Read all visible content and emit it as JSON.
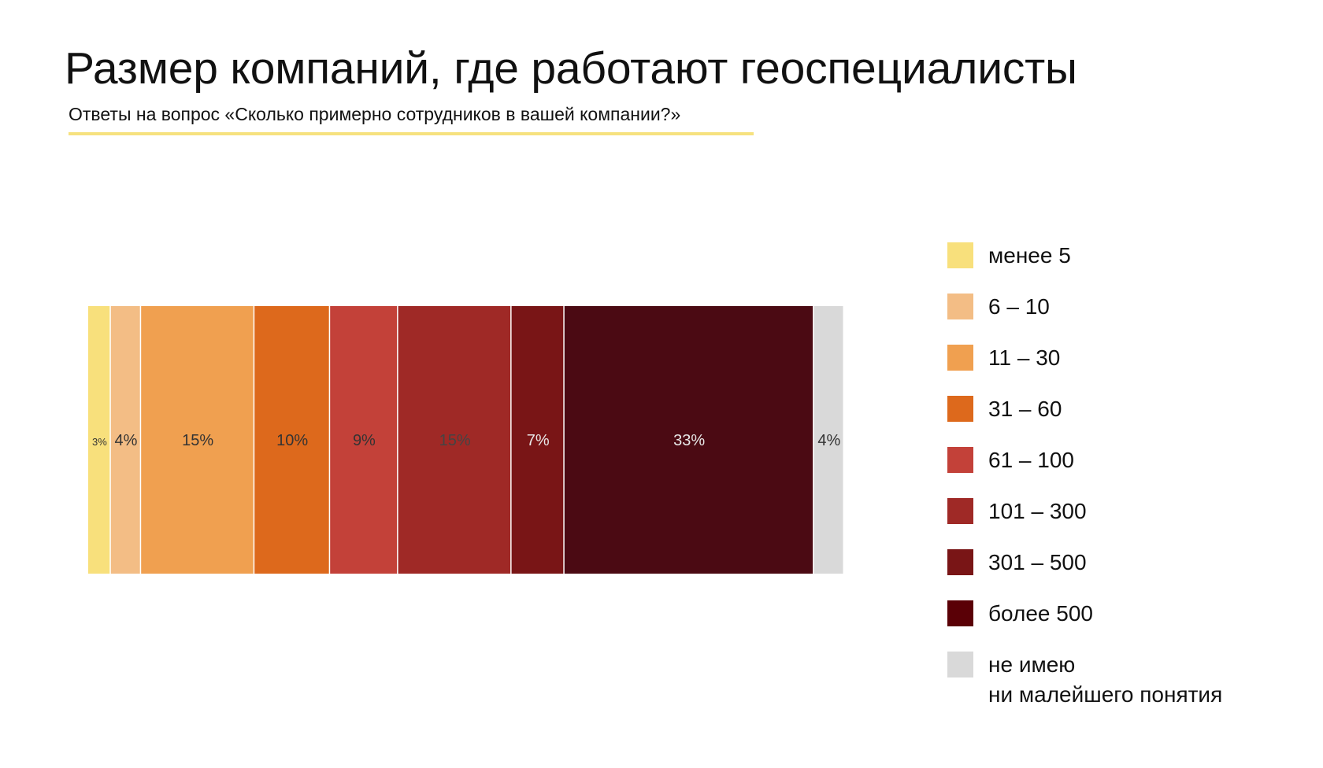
{
  "title": "Размер компаний, где работают геоспециалисты",
  "subtitle": "Ответы на вопрос «Сколько примерно сотрудников в вашей компании?»",
  "accent_color": "#f6e27f",
  "chart_data": {
    "type": "bar",
    "orientation": "horizontal-stacked-100",
    "title": "Размер компаний, где работают геоспециалисты",
    "subtitle": "Ответы на вопрос «Сколько примерно сотрудников в вашей компании?»",
    "unit": "%",
    "legend_position": "right",
    "grid": false,
    "series": [
      {
        "name": "менее 5",
        "value": 3,
        "label": "3%",
        "color": "#f8e07c",
        "label_color": "#333333"
      },
      {
        "name": "6 – 10",
        "value": 4,
        "label": "4%",
        "color": "#f3bd85",
        "label_color": "#333333"
      },
      {
        "name": "11 – 30",
        "value": 15,
        "label": "15%",
        "color": "#f0a050",
        "label_color": "#333333"
      },
      {
        "name": "31 – 60",
        "value": 10,
        "label": "10%",
        "color": "#dd691c",
        "label_color": "#333333"
      },
      {
        "name": "61 – 100",
        "value": 9,
        "label": "9%",
        "color": "#c34139",
        "label_color": "#333333"
      },
      {
        "name": "101 – 300",
        "value": 15,
        "label": "15%",
        "color": "#9f2926",
        "label_color": "#444444"
      },
      {
        "name": "301 – 500",
        "value": 7,
        "label": "7%",
        "color": "#791516",
        "label_color": "#e8e8e8"
      },
      {
        "name": "более 500",
        "value": 33,
        "label": "33%",
        "color": "#4b0a13",
        "label_color": "#e8e8e8"
      },
      {
        "name": "не имею ни малейшего понятия",
        "value": 4,
        "label": "4%",
        "color": "#d9d9d9",
        "label_color": "#333333"
      }
    ],
    "legend_entries": [
      [
        "менее 5"
      ],
      [
        "6 – 10"
      ],
      [
        "11 – 30"
      ],
      [
        "31 – 60"
      ],
      [
        "61 – 100"
      ],
      [
        "101 – 300"
      ],
      [
        "301 – 500"
      ],
      [
        "более 500"
      ],
      [
        "не имею",
        "ни малейшего понятия"
      ]
    ],
    "legend_colors": [
      "#f8e07c",
      "#f3bd85",
      "#f0a050",
      "#dd691c",
      "#c34139",
      "#9f2926",
      "#791516",
      "#5a0006",
      "#d9d9d9"
    ]
  }
}
